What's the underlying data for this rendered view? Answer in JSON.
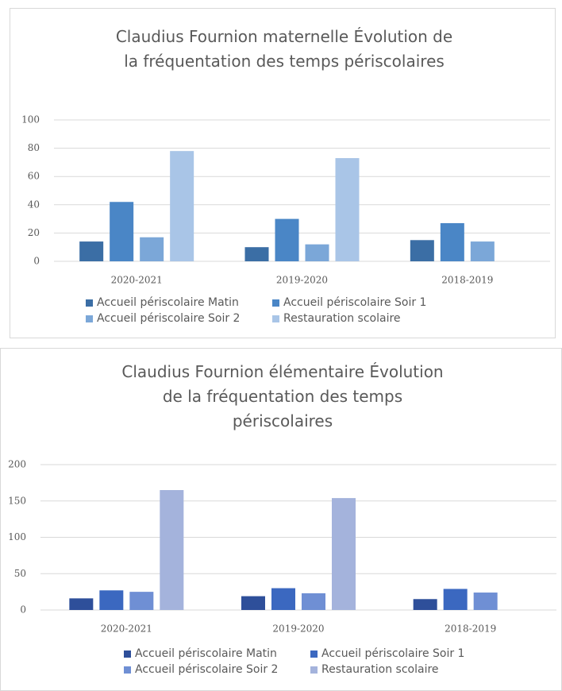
{
  "chart_data": [
    {
      "type": "bar",
      "title": "Claudius Fournion maternelle Évolution de la fréquentation des temps périscolaires",
      "categories": [
        "2020-2021",
        "2019-2020",
        "2018-2019"
      ],
      "series": [
        {
          "name": "Accueil périscolaire Matin",
          "color": "#3b6ea5",
          "values": [
            14,
            10,
            15
          ]
        },
        {
          "name": "Accueil périscolaire Soir 1",
          "color": "#4a86c6",
          "values": [
            42,
            30,
            27
          ]
        },
        {
          "name": "Accueil périscolaire Soir 2",
          "color": "#7ba7d8",
          "values": [
            17,
            12,
            14
          ]
        },
        {
          "name": "Restauration scolaire",
          "color": "#a9c5e7",
          "values": [
            78,
            73,
            null
          ]
        }
      ],
      "ylim": [
        0,
        100
      ],
      "yticks": [
        0,
        20,
        40,
        60,
        80,
        100
      ],
      "grid": true,
      "legend": "bottom"
    },
    {
      "type": "bar",
      "title": "Claudius Fournion élémentaire Évolution de la fréquentation des temps périscolaires",
      "categories": [
        "2020-2021",
        "2019-2020",
        "2018-2019"
      ],
      "series": [
        {
          "name": "Accueil périscolaire Matin",
          "color": "#2e4f9a",
          "values": [
            16,
            19,
            15
          ]
        },
        {
          "name": "Accueil périscolaire Soir 1",
          "color": "#3b68c0",
          "values": [
            27,
            30,
            29
          ]
        },
        {
          "name": "Accueil périscolaire Soir 2",
          "color": "#6f8fd4",
          "values": [
            25,
            23,
            24
          ]
        },
        {
          "name": "Restauration scolaire",
          "color": "#a4b3dc",
          "values": [
            165,
            154,
            null
          ]
        }
      ],
      "ylim": [
        0,
        200
      ],
      "yticks": [
        0,
        50,
        100,
        150,
        200
      ],
      "grid": true,
      "legend": "bottom"
    }
  ]
}
